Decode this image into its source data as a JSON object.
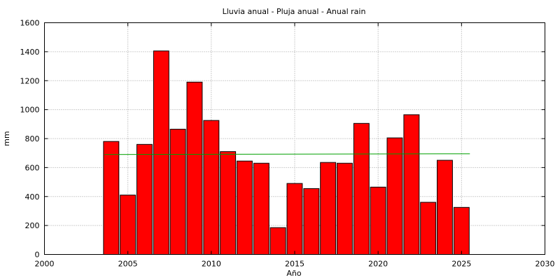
{
  "chart_data": {
    "type": "bar",
    "title": "Lluvia anual - Pluja anual - Anual rain",
    "xlabel": "Año",
    "ylabel": "mm",
    "xlim": [
      2000,
      2030
    ],
    "ylim": [
      0,
      1600
    ],
    "xticks": [
      2000,
      2005,
      2010,
      2015,
      2020,
      2025,
      2030
    ],
    "yticks": [
      0,
      200,
      400,
      600,
      800,
      1000,
      1200,
      1400,
      1600
    ],
    "grid": true,
    "legend": "none",
    "bar_color": "#ff0000",
    "trend_color": "#00a000",
    "series": [
      {
        "x": [
          2004,
          2005,
          2006,
          2007,
          2008,
          2009,
          2010,
          2011,
          2012,
          2013,
          2014,
          2015,
          2016,
          2017,
          2018,
          2019,
          2020,
          2021,
          2022,
          2023,
          2024,
          2025
        ],
        "values": [
          780,
          410,
          760,
          1405,
          865,
          1190,
          925,
          710,
          645,
          630,
          185,
          490,
          455,
          635,
          630,
          905,
          465,
          805,
          965,
          360,
          650,
          325
        ]
      }
    ],
    "trend_line": {
      "x": [
        2003.6,
        2025.5
      ],
      "y": [
        690,
        695
      ]
    }
  }
}
